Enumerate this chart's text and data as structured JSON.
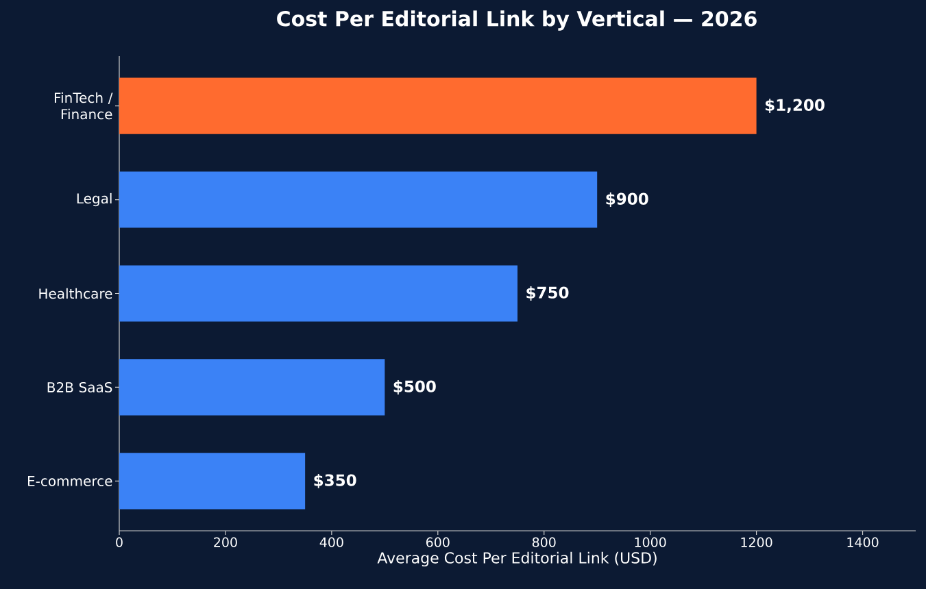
{
  "chart_data": {
    "type": "bar",
    "orientation": "horizontal",
    "title": "Cost Per Editorial Link by Vertical — 2026",
    "xlabel": "Average Cost Per Editorial Link (USD)",
    "categories": [
      "FinTech / Finance",
      "Legal",
      "Healthcare",
      "B2B SaaS",
      "E-commerce"
    ],
    "values": [
      1200,
      900,
      750,
      500,
      350
    ],
    "colors": [
      "#ff6b2f",
      "#3b82f6",
      "#3b82f6",
      "#3b82f6",
      "#3b82f6"
    ],
    "value_labels": [
      "$1,200",
      "$900",
      "$750",
      "$500",
      "$350"
    ],
    "xlim": [
      0,
      1500
    ],
    "xticks": [
      0,
      200,
      400,
      600,
      800,
      1000,
      1200,
      1400
    ]
  }
}
